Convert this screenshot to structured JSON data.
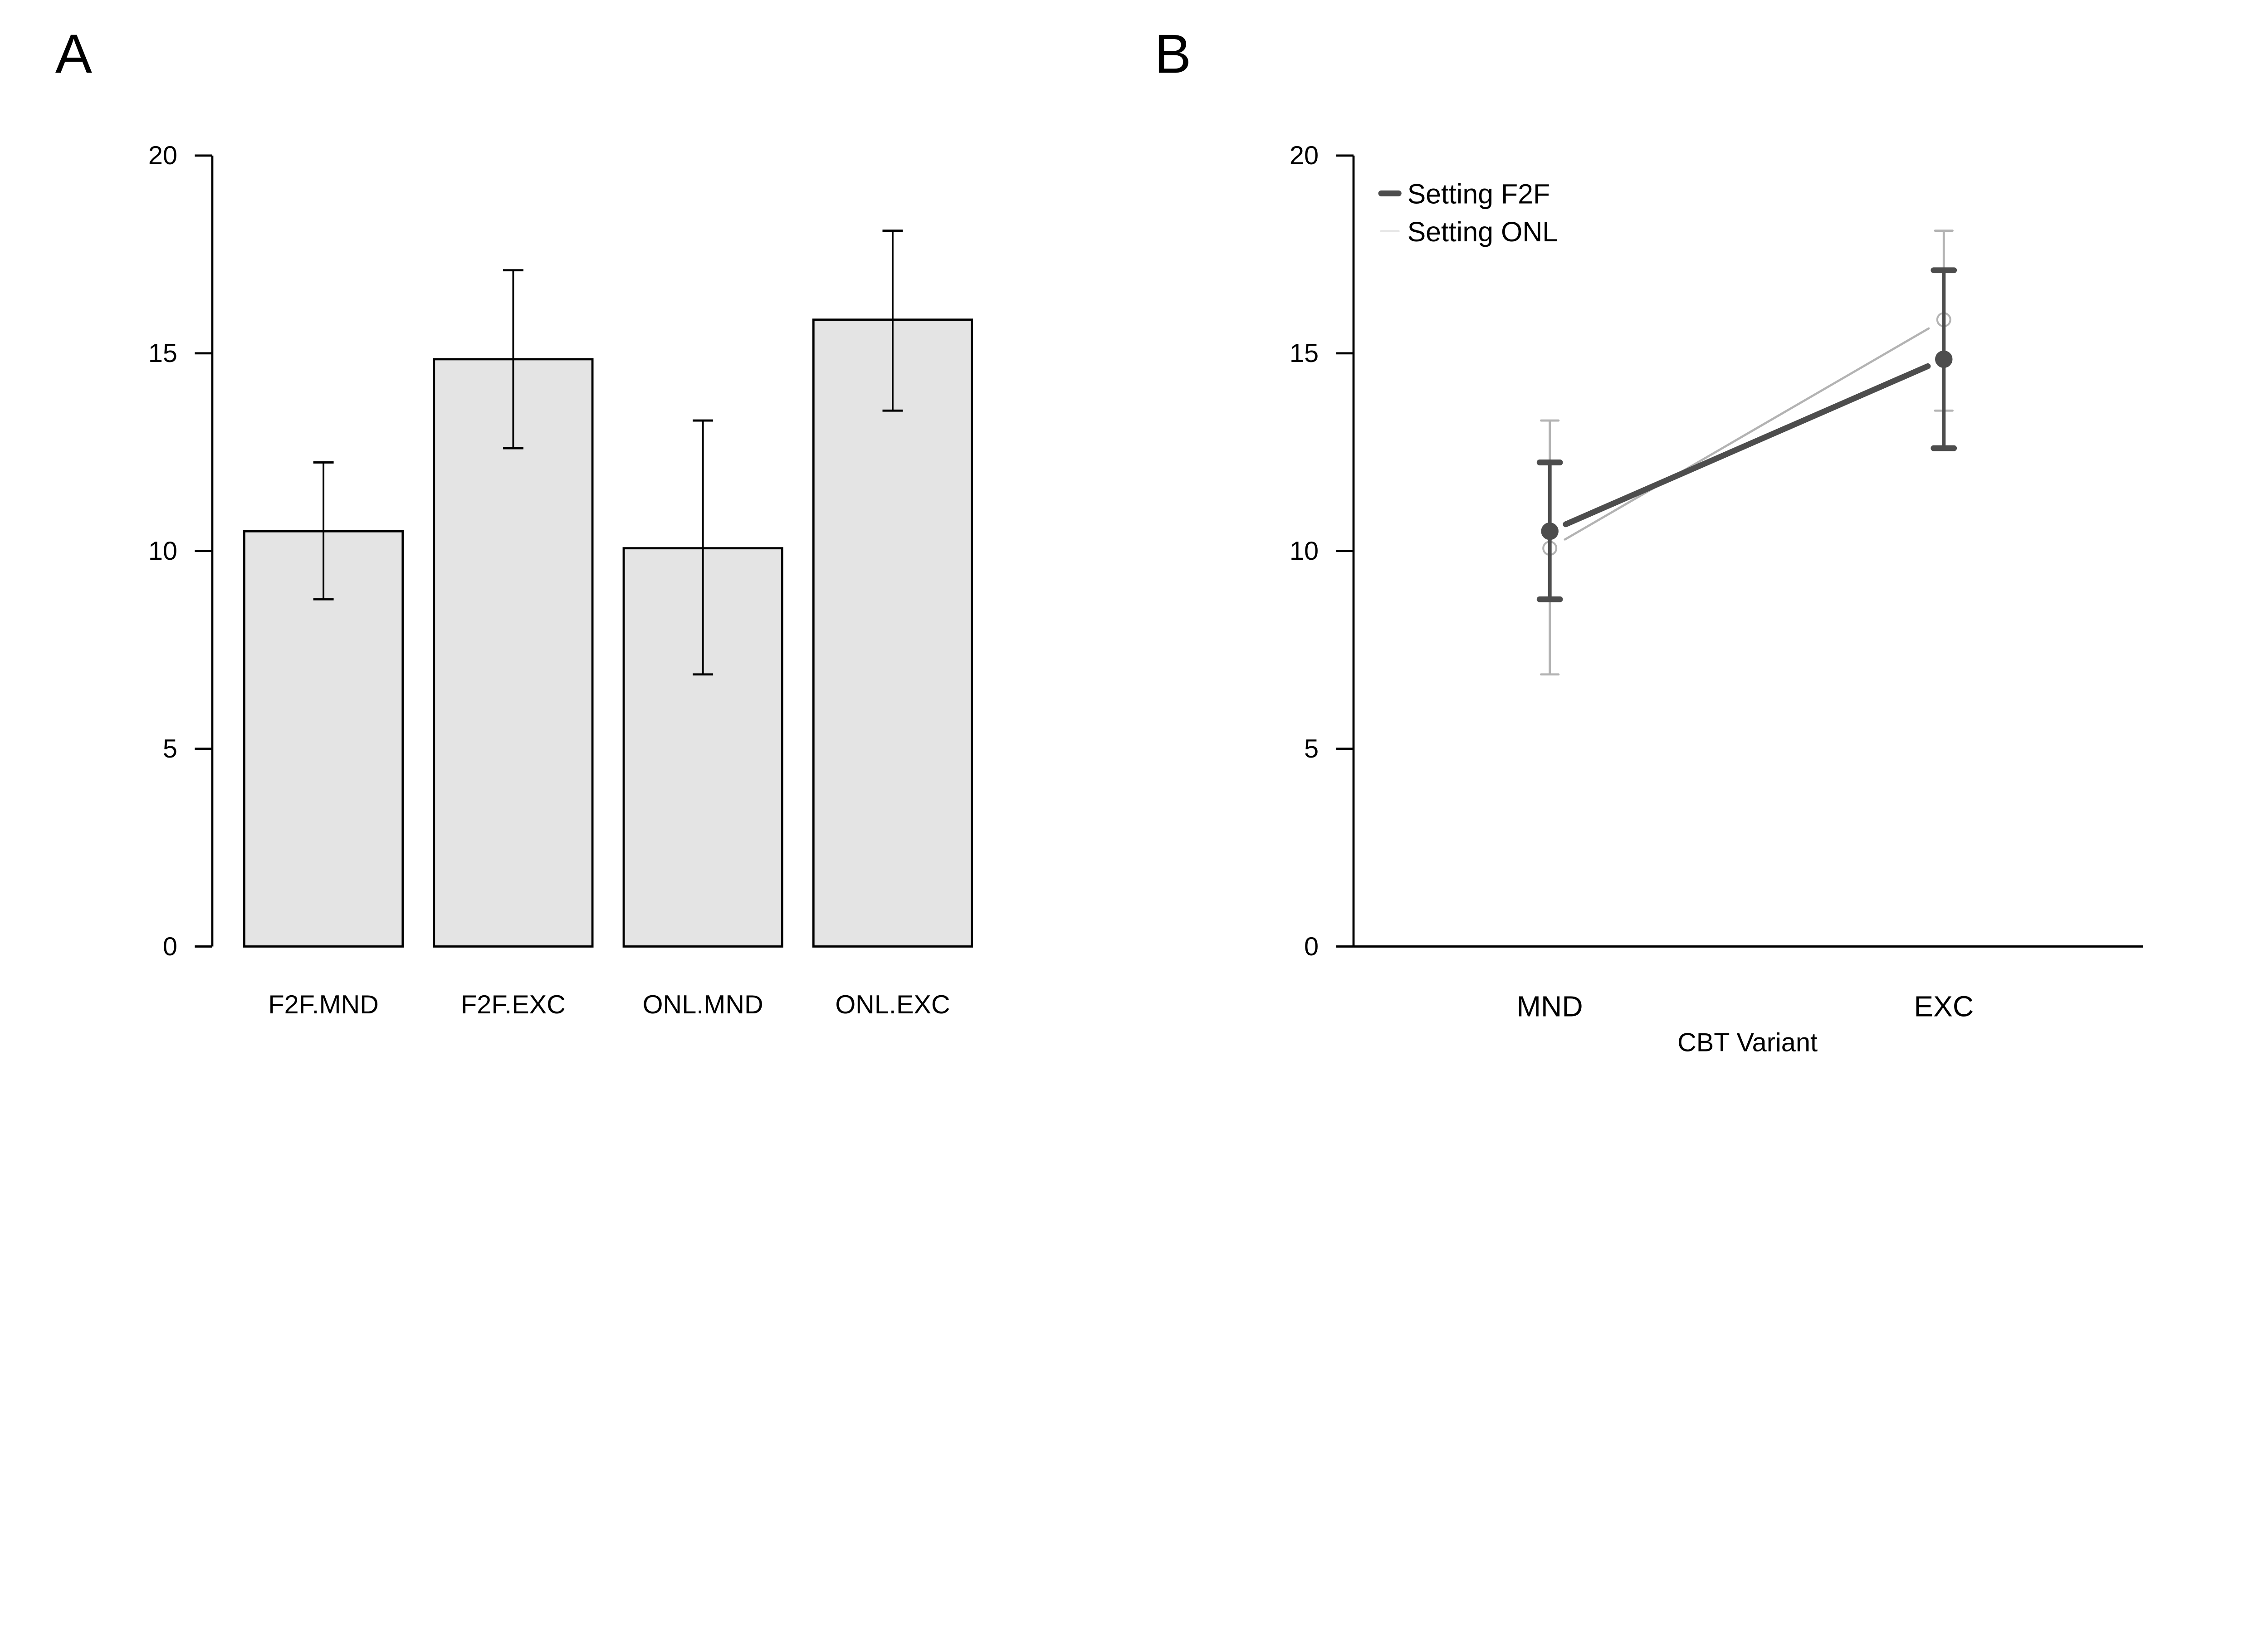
{
  "chart_data": [
    {
      "panel_label": "A",
      "type": "bar",
      "categories": [
        "F2F.MND",
        "F2F.EXC",
        "ONL.MND",
        "ONL.EXC"
      ],
      "values": [
        10.5,
        14.85,
        10.07,
        15.85
      ],
      "error_low": [
        8.78,
        12.6,
        6.88,
        13.55
      ],
      "error_high": [
        12.24,
        17.1,
        13.3,
        18.1
      ],
      "ylim": [
        0,
        20
      ],
      "yticks": [
        0,
        5,
        10,
        15,
        20
      ],
      "xlabel": "",
      "ylabel": "",
      "grid": false,
      "colors": {
        "bar_fill": "#e4e4e4",
        "bar_stroke": "#000000"
      }
    },
    {
      "panel_label": "B",
      "type": "line",
      "categories": [
        "MND",
        "EXC"
      ],
      "xlabel": "CBT Variant",
      "ylabel": "",
      "ylim": [
        0,
        20
      ],
      "yticks": [
        0,
        5,
        10,
        15,
        20
      ],
      "grid": false,
      "legend_position": "top-left",
      "series": [
        {
          "name": "Setting F2F",
          "values": [
            10.5,
            14.85
          ],
          "error_low": [
            8.78,
            12.6
          ],
          "error_high": [
            12.24,
            17.1
          ],
          "color": "#4d4d4d",
          "marker": "filled-circle"
        },
        {
          "name": "Setting ONL",
          "values": [
            10.07,
            15.85
          ],
          "error_low": [
            6.88,
            13.55
          ],
          "error_high": [
            13.3,
            18.1
          ],
          "color": "#b3b3b3",
          "legend_color": "#e6e6e6",
          "marker": "open-circle"
        }
      ]
    }
  ]
}
